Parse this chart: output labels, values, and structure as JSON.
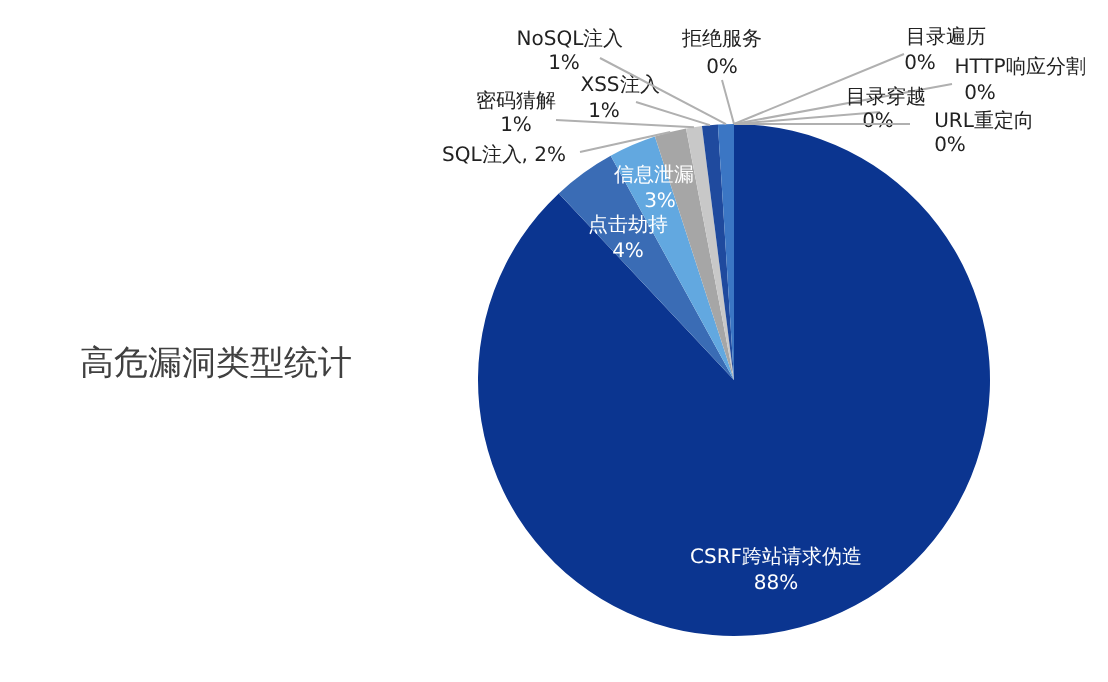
{
  "chart_data": {
    "type": "pie",
    "title": "高危漏洞类型统计",
    "categories": [
      "目录遍历",
      "HTTP响应分割",
      "目录穿越",
      "URL重定向",
      "CSRF跨站请求伪造",
      "点击劫持",
      "信息泄漏",
      "SQL注入",
      "密码猜解",
      "XSS注入",
      "NoSQL注入",
      "拒绝服务"
    ],
    "values": [
      0,
      0,
      0,
      0,
      88,
      4,
      3,
      2,
      1,
      1,
      1,
      0
    ],
    "value_labels": [
      "0%",
      "0%",
      "0%",
      "0%",
      "88%",
      "4%",
      "3%",
      "2%",
      "1%",
      "1%",
      "1%",
      "0%"
    ],
    "colors": [
      "#7fc241",
      "#9dc3e6",
      "#5b9bd5",
      "#2e75b6",
      "#0b3590",
      "#3a6cb5",
      "#62a8e0",
      "#a6a6a6",
      "#c8c8c8",
      "#1f4a9e",
      "#3b76c4",
      "#8cc8ee"
    ],
    "data_labels": true
  }
}
